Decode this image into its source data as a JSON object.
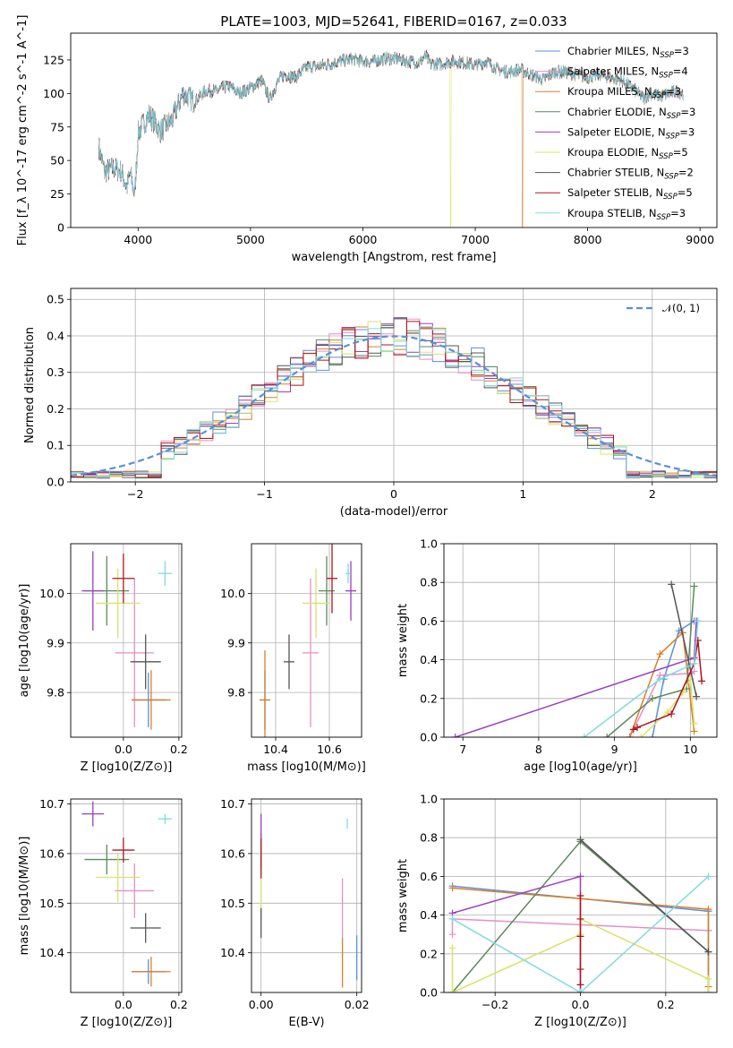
{
  "title": "PLATE=1003, MJD=52641, FIBERID=0167, z=0.033",
  "colors": [
    "#5a8fdc",
    "#e58fc8",
    "#d7802a",
    "#5d8a5a",
    "#9b3fc0",
    "#d9e36a",
    "#555555",
    "#b0141e",
    "#7fd9e6"
  ],
  "chart_data": [
    {
      "type": "line",
      "title": "PLATE=1003, MJD=52641, FIBERID=0167, z=0.033",
      "xlabel": "wavelength [Angstrom, rest frame]",
      "ylabel": "Flux [f_λ 10^-17 erg cm^-2 s^-1 A^-1]",
      "xlim": [
        3400,
        9150
      ],
      "ylim": [
        0,
        145
      ],
      "xticks": [
        "4000",
        "5000",
        "6000",
        "7000",
        "8000",
        "9000"
      ],
      "yticks": [
        "0",
        "25",
        "50",
        "75",
        "100",
        "125"
      ],
      "legend_position": "top-right",
      "spectrum_anchor_points": [
        [
          3650,
          60
        ],
        [
          3700,
          42
        ],
        [
          3780,
          44
        ],
        [
          3850,
          42
        ],
        [
          3900,
          30
        ],
        [
          3930,
          40
        ],
        [
          3970,
          24
        ],
        [
          4000,
          70
        ],
        [
          4050,
          78
        ],
        [
          4100,
          84
        ],
        [
          4200,
          72
        ],
        [
          4300,
          80
        ],
        [
          4400,
          100
        ],
        [
          4500,
          94
        ],
        [
          4600,
          102
        ],
        [
          4700,
          102
        ],
        [
          4800,
          106
        ],
        [
          4900,
          100
        ],
        [
          5000,
          104
        ],
        [
          5100,
          110
        ],
        [
          5170,
          96
        ],
        [
          5250,
          110
        ],
        [
          5300,
          114
        ],
        [
          5400,
          112
        ],
        [
          5500,
          120
        ],
        [
          5600,
          120
        ],
        [
          5700,
          122
        ],
        [
          5800,
          124
        ],
        [
          5900,
          126
        ],
        [
          6000,
          124
        ],
        [
          6100,
          124
        ],
        [
          6200,
          126
        ],
        [
          6300,
          126
        ],
        [
          6400,
          124
        ],
        [
          6500,
          123
        ],
        [
          6560,
          128
        ],
        [
          6600,
          122
        ],
        [
          6700,
          122
        ],
        [
          6800,
          124
        ],
        [
          6900,
          123
        ],
        [
          7000,
          121
        ],
        [
          7100,
          124
        ],
        [
          7200,
          118
        ],
        [
          7300,
          116
        ],
        [
          7400,
          118
        ],
        [
          7500,
          114
        ],
        [
          7600,
          110
        ],
        [
          7700,
          116
        ],
        [
          7800,
          116
        ],
        [
          7900,
          114
        ],
        [
          8000,
          112
        ],
        [
          8100,
          114
        ],
        [
          8200,
          112
        ],
        [
          8300,
          110
        ],
        [
          8400,
          104
        ],
        [
          8500,
          96
        ],
        [
          8550,
          100
        ],
        [
          8650,
          98
        ],
        [
          8800,
          102
        ],
        [
          8850,
          100
        ]
      ],
      "series": [
        {
          "name": "Chabrier MILES, N_SSP=3",
          "legend_label": "Chabrier MILES, N",
          "n_ssp": "=3"
        },
        {
          "name": "Salpeter MILES, N_SSP=4",
          "legend_label": "Salpeter MILES, N",
          "n_ssp": "=4"
        },
        {
          "name": "Kroupa MILES, N_SSP=3",
          "legend_label": "Kroupa MILES, N",
          "n_ssp": "=3"
        },
        {
          "name": "Chabrier ELODIE, N_SSP=3",
          "legend_label": "Chabrier ELODIE, N",
          "n_ssp": "=3"
        },
        {
          "name": "Salpeter ELODIE, N_SSP=3",
          "legend_label": "Salpeter ELODIE, N",
          "n_ssp": "=3"
        },
        {
          "name": "Kroupa ELODIE, N_SSP=5",
          "legend_label": "Kroupa ELODIE, N",
          "n_ssp": "=5"
        },
        {
          "name": "Chabrier STELIB, N_SSP=2",
          "legend_label": "Chabrier STELIB, N",
          "n_ssp": "=2"
        },
        {
          "name": "Salpeter STELIB, N_SSP=5",
          "legend_label": "Salpeter STELIB, N",
          "n_ssp": "=5"
        },
        {
          "name": "Kroupa STELIB, N_SSP=3",
          "legend_label": "Kroupa STELIB, N",
          "n_ssp": "=3"
        }
      ],
      "dropouts": [
        {
          "x": 3930,
          "color_index": 5
        },
        {
          "x": 6780,
          "color_index": 5
        },
        {
          "x": 7420,
          "color_index": 2
        }
      ]
    },
    {
      "type": "area",
      "xlabel": "(data-model)/error",
      "ylabel": "Normed distribution",
      "xlim": [
        -2.5,
        2.5
      ],
      "ylim": [
        0,
        0.53
      ],
      "xticks": [
        "−2",
        "−1",
        "0",
        "1",
        "2"
      ],
      "yticks": [
        "0.0",
        "0.1",
        "0.2",
        "0.3",
        "0.4",
        "0.5"
      ],
      "legend": "𝒩(0, 1)",
      "legend_position": "top-right",
      "bin_width": 0.1,
      "normal_curve": {
        "mean": 0,
        "std": 1
      },
      "histograms": "9 step histograms, one per model, scattered about N(0,1)"
    },
    {
      "type": "scatter",
      "xlabel": "Z [log10(Z/Z⊙)]",
      "ylabel": "age  [log10(age/yr)]",
      "xlim": [
        -0.19,
        0.21
      ],
      "ylim": [
        9.71,
        10.1
      ],
      "xticks": [
        "0.0",
        "0.2"
      ],
      "yticks": [
        "9.8",
        "9.9",
        "10.0"
      ],
      "points": [
        {
          "x": 0.09,
          "y": 9.785,
          "xerr": 0.06,
          "yerr": 0.055
        },
        {
          "x": 0.04,
          "y": 9.88,
          "xerr": 0.07,
          "yerr": 0.15
        },
        {
          "x": 0.1,
          "y": 9.785,
          "xerr": 0.07,
          "yerr": 0.06
        },
        {
          "x": -0.06,
          "y": 10.005,
          "xerr": 0.08,
          "yerr": 0.07
        },
        {
          "x": -0.11,
          "y": 10.005,
          "xerr": 0.04,
          "yerr": 0.08
        },
        {
          "x": -0.02,
          "y": 9.98,
          "xerr": 0.08,
          "yerr": 0.07
        },
        {
          "x": 0.08,
          "y": 9.862,
          "xerr": 0.055,
          "yerr": 0.055
        },
        {
          "x": 0.0,
          "y": 10.03,
          "xerr": 0.04,
          "yerr": 0.05
        },
        {
          "x": 0.15,
          "y": 10.04,
          "xerr": 0.025,
          "yerr": 0.025
        }
      ]
    },
    {
      "type": "scatter",
      "xlabel": "mass [log10(M/M⊙)]",
      "xlim": [
        10.31,
        10.72
      ],
      "ylim": [
        9.71,
        10.1
      ],
      "xticks": [
        "10.4",
        "10.6"
      ],
      "yticks": [
        "9.8",
        "9.9",
        "10.0"
      ],
      "points": [
        {
          "x": 10.36,
          "y": 9.785,
          "xerr": 0.02,
          "yerr": 0.06
        },
        {
          "x": 10.53,
          "y": 9.88,
          "xerr": 0.03,
          "yerr": 0.15
        },
        {
          "x": 10.36,
          "y": 9.785,
          "xerr": 0.02,
          "yerr": 0.1
        },
        {
          "x": 10.59,
          "y": 10.005,
          "xerr": 0.03,
          "yerr": 0.07
        },
        {
          "x": 10.68,
          "y": 10.005,
          "xerr": 0.02,
          "yerr": 0.06
        },
        {
          "x": 10.55,
          "y": 9.98,
          "xerr": 0.05,
          "yerr": 0.07
        },
        {
          "x": 10.45,
          "y": 9.862,
          "xerr": 0.02,
          "yerr": 0.055
        },
        {
          "x": 10.61,
          "y": 10.03,
          "xerr": 0.02,
          "yerr": 0.07
        },
        {
          "x": 10.67,
          "y": 10.04,
          "xerr": 0.01,
          "yerr": 0.02
        }
      ]
    },
    {
      "type": "line",
      "xlabel": "age  [log10(age/yr)]",
      "ylabel": "mass weight",
      "xlim": [
        6.75,
        10.35
      ],
      "ylim": [
        0,
        1
      ],
      "xticks": [
        "7",
        "8",
        "9",
        "10"
      ],
      "yticks": [
        "0.0",
        "0.2",
        "0.4",
        "0.6",
        "0.8",
        "1.0"
      ],
      "series": [
        {
          "x": [
            9.5,
            9.65,
            9.85,
            10.05
          ],
          "y": [
            0.0,
            0.3,
            0.55,
            0.6
          ]
        },
        {
          "x": [
            9.2,
            9.6,
            10.0,
            10.05
          ],
          "y": [
            0.0,
            0.32,
            0.33,
            0.34
          ]
        },
        {
          "x": [
            9.2,
            9.6,
            9.9,
            10.05
          ],
          "y": [
            0.0,
            0.43,
            0.54,
            0.03
          ]
        },
        {
          "x": [
            8.9,
            9.5,
            9.95,
            10.05
          ],
          "y": [
            0.0,
            0.2,
            0.25,
            0.78
          ]
        },
        {
          "x": [
            6.9,
            10.05,
            10.08
          ],
          "y": [
            0.0,
            0.41,
            0.6
          ]
        },
        {
          "x": [
            9.35,
            9.7,
            9.9,
            10.0,
            10.05
          ],
          "y": [
            0.0,
            0.13,
            0.23,
            0.3,
            0.07
          ]
        },
        {
          "x": [
            9.75,
            10.08
          ],
          "y": [
            0.79,
            0.21
          ]
        },
        {
          "x": [
            9.25,
            9.3,
            9.75,
            10.05,
            10.1,
            10.15
          ],
          "y": [
            0.04,
            0.05,
            0.12,
            0.38,
            0.5,
            0.29
          ]
        },
        {
          "x": [
            8.6,
            9.6,
            10.05,
            10.1
          ],
          "y": [
            0.0,
            0.3,
            0.38,
            0.6
          ]
        }
      ]
    },
    {
      "type": "scatter",
      "xlabel": "Z [log10(Z/Z⊙)]",
      "ylabel": "mass [log10(M/M⊙)]",
      "xlim": [
        -0.19,
        0.21
      ],
      "ylim": [
        10.32,
        10.71
      ],
      "xticks": [
        "0.0",
        "0.2"
      ],
      "yticks": [
        "10.4",
        "10.5",
        "10.6",
        "10.7"
      ],
      "points": [
        {
          "x": 0.09,
          "y": 10.362,
          "xerr": 0.06,
          "yerr": 0.025
        },
        {
          "x": 0.04,
          "y": 10.525,
          "xerr": 0.07,
          "yerr": 0.055
        },
        {
          "x": 0.1,
          "y": 10.362,
          "xerr": 0.07,
          "yerr": 0.03
        },
        {
          "x": -0.06,
          "y": 10.588,
          "xerr": 0.08,
          "yerr": 0.03
        },
        {
          "x": -0.11,
          "y": 10.68,
          "xerr": 0.04,
          "yerr": 0.025
        },
        {
          "x": -0.02,
          "y": 10.552,
          "xerr": 0.08,
          "yerr": 0.05
        },
        {
          "x": 0.08,
          "y": 10.45,
          "xerr": 0.055,
          "yerr": 0.03
        },
        {
          "x": 0.0,
          "y": 10.607,
          "xerr": 0.04,
          "yerr": 0.025
        },
        {
          "x": 0.15,
          "y": 10.67,
          "xerr": 0.025,
          "yerr": 0.01
        }
      ]
    },
    {
      "type": "scatter",
      "xlabel": "E(B-V)",
      "xlim": [
        -0.002,
        0.021
      ],
      "ylim": [
        10.32,
        10.71
      ],
      "xticks": [
        "0.00",
        "0.02"
      ],
      "yticks": [
        "10.4",
        "10.5",
        "10.6",
        "10.7"
      ],
      "points": [
        {
          "x": 0.02,
          "y": 10.39,
          "xerr": 0,
          "yerr": 0.045
        },
        {
          "x": 0.017,
          "y": 10.49,
          "xerr": 0,
          "yerr": 0.06
        },
        {
          "x": 0.017,
          "y": 10.38,
          "xerr": 0,
          "yerr": 0.05
        },
        {
          "x": 0.0,
          "y": 10.6,
          "xerr": 0,
          "yerr": 0.04
        },
        {
          "x": 0.0,
          "y": 10.65,
          "xerr": 0,
          "yerr": 0.03
        },
        {
          "x": 0.0,
          "y": 10.52,
          "xerr": 0,
          "yerr": 0.05
        },
        {
          "x": 0.0,
          "y": 10.46,
          "xerr": 0,
          "yerr": 0.03
        },
        {
          "x": 0.0,
          "y": 10.59,
          "xerr": 0,
          "yerr": 0.04
        },
        {
          "x": 0.018,
          "y": 10.66,
          "xerr": 0,
          "yerr": 0.01
        }
      ]
    },
    {
      "type": "line",
      "xlabel": "Z [log10(Z/Z⊙)]",
      "ylabel": "mass weight",
      "xlim": [
        -0.32,
        0.32
      ],
      "ylim": [
        0,
        1
      ],
      "xticks": [
        "−0.2",
        "0.0",
        "0.2"
      ],
      "yticks": [
        "0.0",
        "0.2",
        "0.4",
        "0.6",
        "0.8",
        "1.0"
      ],
      "series": [
        {
          "x": [
            -0.3,
            0.3,
            0.3
          ],
          "y": [
            0.55,
            0.42,
            0.0
          ]
        },
        {
          "x": [
            -0.3,
            -0.3,
            0.3,
            0.3
          ],
          "y": [
            0.3,
            0.38,
            0.32,
            0.32
          ]
        },
        {
          "x": [
            -0.3,
            0.3,
            0.3
          ],
          "y": [
            0.54,
            0.43,
            0.03
          ]
        },
        {
          "x": [
            -0.3,
            0.0,
            0.3
          ],
          "y": [
            0.0,
            0.78,
            0.21
          ]
        },
        {
          "x": [
            -0.3,
            0.0,
            0.0
          ],
          "y": [
            0.41,
            0.6,
            0.0
          ]
        },
        {
          "x": [
            -0.3,
            -0.3,
            0.0,
            0.0,
            0.3,
            0.3
          ],
          "y": [
            0.23,
            0.0,
            0.3,
            0.38,
            0.07,
            0.0
          ]
        },
        {
          "x": [
            0.0,
            0.3
          ],
          "y": [
            0.79,
            0.21
          ]
        },
        {
          "x": [
            0.0,
            0.0,
            0.0,
            0.0,
            0.0
          ],
          "y": [
            0.04,
            0.12,
            0.29,
            0.38,
            0.5
          ]
        },
        {
          "x": [
            -0.3,
            0.0,
            0.3
          ],
          "y": [
            0.38,
            0.0,
            0.6
          ]
        }
      ]
    }
  ]
}
